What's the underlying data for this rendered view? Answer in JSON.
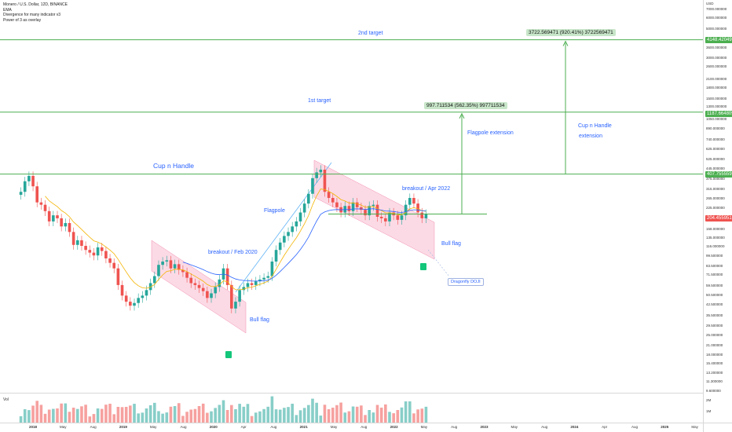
{
  "header": {
    "line1": "Monero / U.S. Dollar, 12D, BINANCE",
    "line2": "EMA",
    "line3": "Divergence for many indicator v3",
    "line4": "Power of 3 as overlay"
  },
  "colors": {
    "up": "#26a69a",
    "down": "#ef5350",
    "ema_fast": "#f4b400",
    "ema_slow": "#2962ff",
    "levels": "#4caf50",
    "channel": "#f8bbd0",
    "annotation": "#2962ff",
    "last_price_bg": "#ef5350"
  },
  "annotations": {
    "second_target": "2nd target",
    "first_target": "1st target",
    "cup_handle": "Cup n Handle",
    "flagpole": "Flagpole",
    "flagpole_extension": "Flagpole extension",
    "cup_handle_ext_1": "Cup n Handle",
    "cup_handle_ext_2": "extension",
    "breakout_feb_2020": "breakout / Feb 2020",
    "breakout_apr_2022": "breakout / Apr 2022",
    "bull_flag_1": "Bull flag",
    "bull_flag_2": "Bull flag",
    "dragonfly_doji": "Dragonfly DOJI",
    "measure_1": "997.711534 (562.35%) 997711534",
    "measure_2": "3722.569471 (920.41%) 3722569471",
    "volume_label": "Vol"
  },
  "price_tags": {
    "level_top": "4148.420495",
    "level_mid": "1187.664809",
    "level_low": "407.755559",
    "last_price": "204.455951"
  },
  "chart_data": {
    "type": "candlestick",
    "title": "Monero / U.S. Dollar, 12D, BINANCE",
    "scale": "log",
    "y_axis_ticks": [
      "7000.000000",
      "6000.000000",
      "5000.000000",
      "4000.000000",
      "3600.000000",
      "3000.000000",
      "2600.000000",
      "2100.000000",
      "1800.000000",
      "1500.000000",
      "1300.000000",
      "1050.000000",
      "890.000000",
      "740.000000",
      "625.000000",
      "525.000000",
      "445.000000",
      "375.000000",
      "315.000000",
      "265.000000",
      "225.000000",
      "190.000000",
      "158.000000",
      "135.000000",
      "116.000000",
      "99.500000",
      "83.500000",
      "71.500000",
      "59.500000",
      "50.500000",
      "42.500000",
      "35.500000",
      "29.500000",
      "25.000000",
      "21.000000",
      "18.000000",
      "15.400000",
      "13.200000",
      "11.300000",
      "9.600000"
    ],
    "y_axis_unit": "USD",
    "x_axis_ticks": [
      {
        "label": "2018",
        "year": true
      },
      {
        "label": "May",
        "year": false
      },
      {
        "label": "Aug",
        "year": false
      },
      {
        "label": "2019",
        "year": true
      },
      {
        "label": "May",
        "year": false
      },
      {
        "label": "Aug",
        "year": false
      },
      {
        "label": "2020",
        "year": true
      },
      {
        "label": "Apr",
        "year": false
      },
      {
        "label": "Aug",
        "year": false
      },
      {
        "label": "2021",
        "year": true
      },
      {
        "label": "May",
        "year": false
      },
      {
        "label": "Aug",
        "year": false
      },
      {
        "label": "2022",
        "year": true
      },
      {
        "label": "May",
        "year": false
      },
      {
        "label": "Aug",
        "year": false
      },
      {
        "label": "2023",
        "year": true
      },
      {
        "label": "May",
        "year": false
      },
      {
        "label": "Aug",
        "year": false
      },
      {
        "label": "2024",
        "year": true
      },
      {
        "label": "Apr",
        "year": false
      },
      {
        "label": "Aug",
        "year": false
      },
      {
        "label": "2025",
        "year": true
      },
      {
        "label": "May",
        "year": false
      }
    ],
    "volume_ticks": [
      "2M",
      "1M"
    ],
    "horizontal_levels": [
      4148.42,
      1187.66,
      407.76,
      204.46
    ],
    "close_series": [
      300,
      360,
      395,
      330,
      250,
      240,
      215,
      180,
      200,
      190,
      165,
      175,
      150,
      120,
      130,
      118,
      110,
      105,
      100,
      115,
      108,
      95,
      88,
      80,
      60,
      50,
      45,
      42,
      44,
      48,
      50,
      55,
      62,
      70,
      85,
      90,
      92,
      80,
      86,
      78,
      75,
      68,
      62,
      60,
      57,
      54,
      48,
      52,
      58,
      66,
      80,
      60,
      40,
      45,
      55,
      58,
      62,
      60,
      64,
      66,
      68,
      70,
      90,
      110,
      125,
      140,
      150,
      165,
      180,
      210,
      245,
      290,
      380,
      420,
      440,
      300,
      270,
      250,
      230,
      210,
      235,
      215,
      250,
      230,
      220,
      200,
      235,
      240,
      195,
      190,
      180,
      210,
      200,
      185,
      200,
      240,
      270,
      245,
      210,
      190,
      205
    ]
  }
}
